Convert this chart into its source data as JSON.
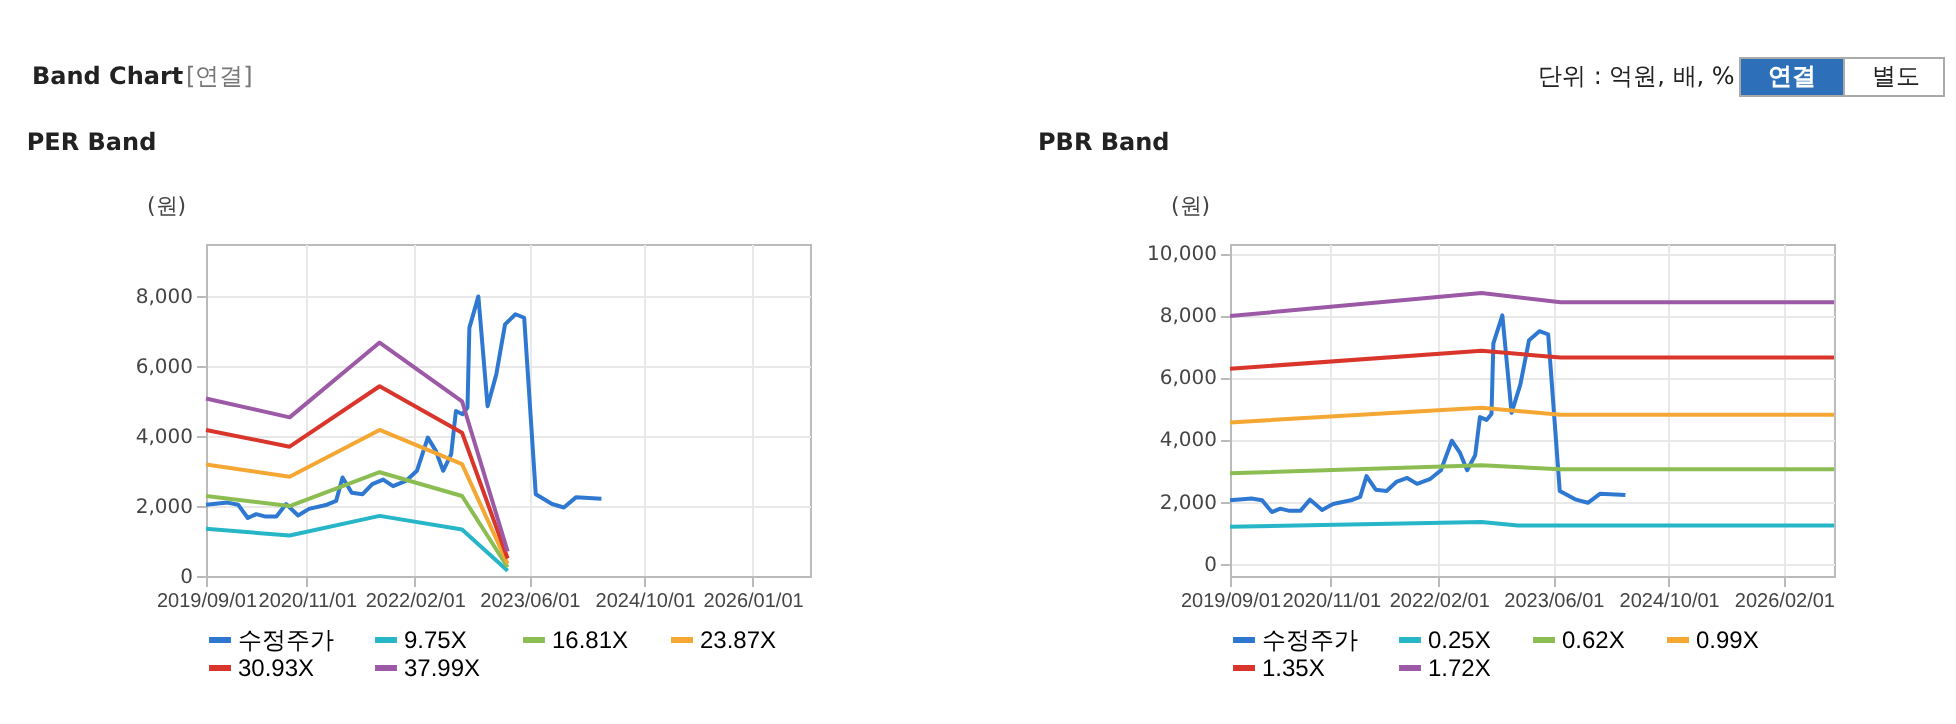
{
  "chart_data": [
    {
      "type": "line",
      "title": "PER Band",
      "ylabel": "(원)",
      "annotations": [
        "Band Chart",
        "[연결]",
        "단위 : 억원, 배, %",
        "연결",
        "별도"
      ],
      "xlim": [
        "2019-09-01",
        "2026-09-01"
      ],
      "xticks": [
        {
          "value": "2019-09-01",
          "label": "2019/09/01"
        },
        {
          "value": "2020-11-01",
          "label": "2020/11/01"
        },
        {
          "value": "2022-02-01",
          "label": "2022/02/01"
        },
        {
          "value": "2023-06-01",
          "label": "2023/06/01"
        },
        {
          "value": "2024-10-01",
          "label": "2024/10/01"
        },
        {
          "value": "2026-01-01",
          "label": "2026/01/01"
        }
      ],
      "ylim": [
        0,
        9500
      ],
      "yticks": [
        {
          "value": 0,
          "label": "0"
        },
        {
          "value": 2000,
          "label": "2,000"
        },
        {
          "value": 4000,
          "label": "4,000"
        },
        {
          "value": 6000,
          "label": "6,000"
        },
        {
          "value": 8000,
          "label": "8,000"
        }
      ],
      "grid": true,
      "legend": "bottom",
      "marker": "none",
      "line_style": "solid",
      "series": [
        {
          "name": "수정주가",
          "color": "#2f78d2",
          "x": [
            "2019-09-01",
            "2019-12-01",
            "2020-01-15",
            "2020-02-25",
            "2020-04-01",
            "2020-05-10",
            "2020-06-25",
            "2020-08-05",
            "2020-09-25",
            "2020-11-10",
            "2021-01-25",
            "2021-03-05",
            "2021-04-01",
            "2021-05-10",
            "2021-06-25",
            "2021-08-05",
            "2021-09-20",
            "2021-11-01",
            "2021-12-25",
            "2022-02-10",
            "2022-03-28",
            "2022-05-01",
            "2022-06-01",
            "2022-07-05",
            "2022-07-25",
            "2022-08-22",
            "2022-09-12",
            "2022-09-20",
            "2022-10-28",
            "2022-12-06",
            "2023-01-12",
            "2023-02-18",
            "2023-04-03",
            "2023-05-10",
            "2023-06-28",
            "2023-09-05",
            "2023-10-25",
            "2023-12-15",
            "2024-04-01"
          ],
          "values": [
            2040,
            2100,
            2040,
            1660,
            1770,
            1700,
            1700,
            2060,
            1730,
            1920,
            2040,
            2150,
            2820,
            2380,
            2340,
            2630,
            2760,
            2570,
            2720,
            3010,
            3960,
            3580,
            3010,
            3490,
            4720,
            4630,
            4820,
            7100,
            8000,
            4860,
            5770,
            7200,
            7490,
            7390,
            2340,
            2060,
            1960,
            2250,
            2210
          ]
        },
        {
          "name": "9.75X",
          "color": "#27b5c8",
          "x": [
            "2019-09-01",
            "2020-08-20",
            "2021-09-05",
            "2022-08-20",
            "2023-03-01"
          ],
          "values": [
            1350,
            1160,
            1720,
            1330,
            150
          ]
        },
        {
          "name": "16.81X",
          "color": "#8cbd52",
          "x": [
            "2019-09-01",
            "2020-08-20",
            "2021-09-05",
            "2022-08-20",
            "2023-03-01"
          ],
          "values": [
            2290,
            2000,
            2970,
            2290,
            250
          ]
        },
        {
          "name": "23.87X",
          "color": "#f5a733",
          "x": [
            "2019-09-01",
            "2020-08-20",
            "2021-09-05",
            "2022-08-20",
            "2023-03-01"
          ],
          "values": [
            3190,
            2840,
            4180,
            3200,
            350
          ]
        },
        {
          "name": "30.93X",
          "color": "#d9352b",
          "x": [
            "2019-09-01",
            "2020-08-20",
            "2021-09-05",
            "2022-08-20",
            "2023-03-01"
          ],
          "values": [
            4180,
            3700,
            5430,
            4100,
            500
          ]
        },
        {
          "name": "37.99X",
          "color": "#9b59a6",
          "x": [
            "2019-09-01",
            "2020-08-20",
            "2021-09-05",
            "2022-08-20",
            "2023-03-01"
          ],
          "values": [
            5080,
            4540,
            6680,
            5000,
            700
          ]
        }
      ]
    },
    {
      "type": "line",
      "title": "PBR Band",
      "ylabel": "(원)",
      "xlim": [
        "2019-09-01",
        "2026-09-01"
      ],
      "xticks": [
        {
          "value": "2019-09-01",
          "label": "2019/09/01"
        },
        {
          "value": "2020-11-01",
          "label": "2020/11/01"
        },
        {
          "value": "2022-02-01",
          "label": "2022/02/01"
        },
        {
          "value": "2023-06-01",
          "label": "2023/06/01"
        },
        {
          "value": "2024-10-01",
          "label": "2024/10/01"
        },
        {
          "value": "2026-02-01",
          "label": "2026/02/01"
        }
      ],
      "ylim": [
        -400,
        10300
      ],
      "yticks": [
        {
          "value": 0,
          "label": "0"
        },
        {
          "value": 2000,
          "label": "2,000"
        },
        {
          "value": 4000,
          "label": "4,000"
        },
        {
          "value": 6000,
          "label": "6,000"
        },
        {
          "value": 8000,
          "label": "8,000"
        },
        {
          "value": 10000,
          "label": "10,000"
        }
      ],
      "grid": true,
      "legend": "bottom",
      "marker": "none",
      "line_style": "solid",
      "series": [
        {
          "name": "수정주가",
          "color": "#2f78d2",
          "x": [
            "2019-09-01",
            "2019-12-01",
            "2020-01-15",
            "2020-02-25",
            "2020-04-01",
            "2020-05-10",
            "2020-06-25",
            "2020-08-05",
            "2020-09-25",
            "2020-11-10",
            "2021-01-25",
            "2021-03-05",
            "2021-04-01",
            "2021-05-10",
            "2021-06-25",
            "2021-08-05",
            "2021-09-20",
            "2021-11-01",
            "2021-12-25",
            "2022-02-10",
            "2022-03-28",
            "2022-05-01",
            "2022-06-01",
            "2022-07-05",
            "2022-07-25",
            "2022-08-22",
            "2022-09-12",
            "2022-09-20",
            "2022-10-28",
            "2022-12-06",
            "2023-01-12",
            "2023-02-18",
            "2023-04-03",
            "2023-05-10",
            "2023-06-28",
            "2023-09-05",
            "2023-10-25",
            "2023-12-15",
            "2024-04-01"
          ],
          "values": [
            2040,
            2100,
            2040,
            1660,
            1770,
            1700,
            1700,
            2060,
            1730,
            1920,
            2040,
            2150,
            2820,
            2380,
            2340,
            2630,
            2760,
            2570,
            2720,
            3010,
            3960,
            3580,
            3010,
            3490,
            4720,
            4630,
            4820,
            7100,
            8000,
            4860,
            5770,
            7200,
            7490,
            7390,
            2340,
            2060,
            1960,
            2250,
            2210
          ]
        },
        {
          "name": "0.25X",
          "color": "#27b5c8",
          "x": [
            "2019-09-01",
            "2022-08-01",
            "2023-01-01",
            "2026-09-01"
          ],
          "values": [
            1190,
            1340,
            1230,
            1230
          ]
        },
        {
          "name": "0.62X",
          "color": "#8cbd52",
          "x": [
            "2019-09-01",
            "2022-08-01",
            "2023-07-01",
            "2026-09-01"
          ],
          "values": [
            2910,
            3170,
            3040,
            3040
          ]
        },
        {
          "name": "0.99X",
          "color": "#f5a733",
          "x": [
            "2019-09-01",
            "2022-08-01",
            "2023-07-01",
            "2026-09-01"
          ],
          "values": [
            4550,
            5020,
            4800,
            4800
          ]
        },
        {
          "name": "1.35X",
          "color": "#d9352b",
          "x": [
            "2019-09-01",
            "2022-08-01",
            "2023-07-01",
            "2026-09-01"
          ],
          "values": [
            6280,
            6860,
            6640,
            6640
          ]
        },
        {
          "name": "1.72X",
          "color": "#9b59a6",
          "x": [
            "2019-09-01",
            "2022-08-01",
            "2023-07-01",
            "2026-09-01"
          ],
          "values": [
            7980,
            8720,
            8420,
            8420
          ]
        }
      ]
    }
  ]
}
